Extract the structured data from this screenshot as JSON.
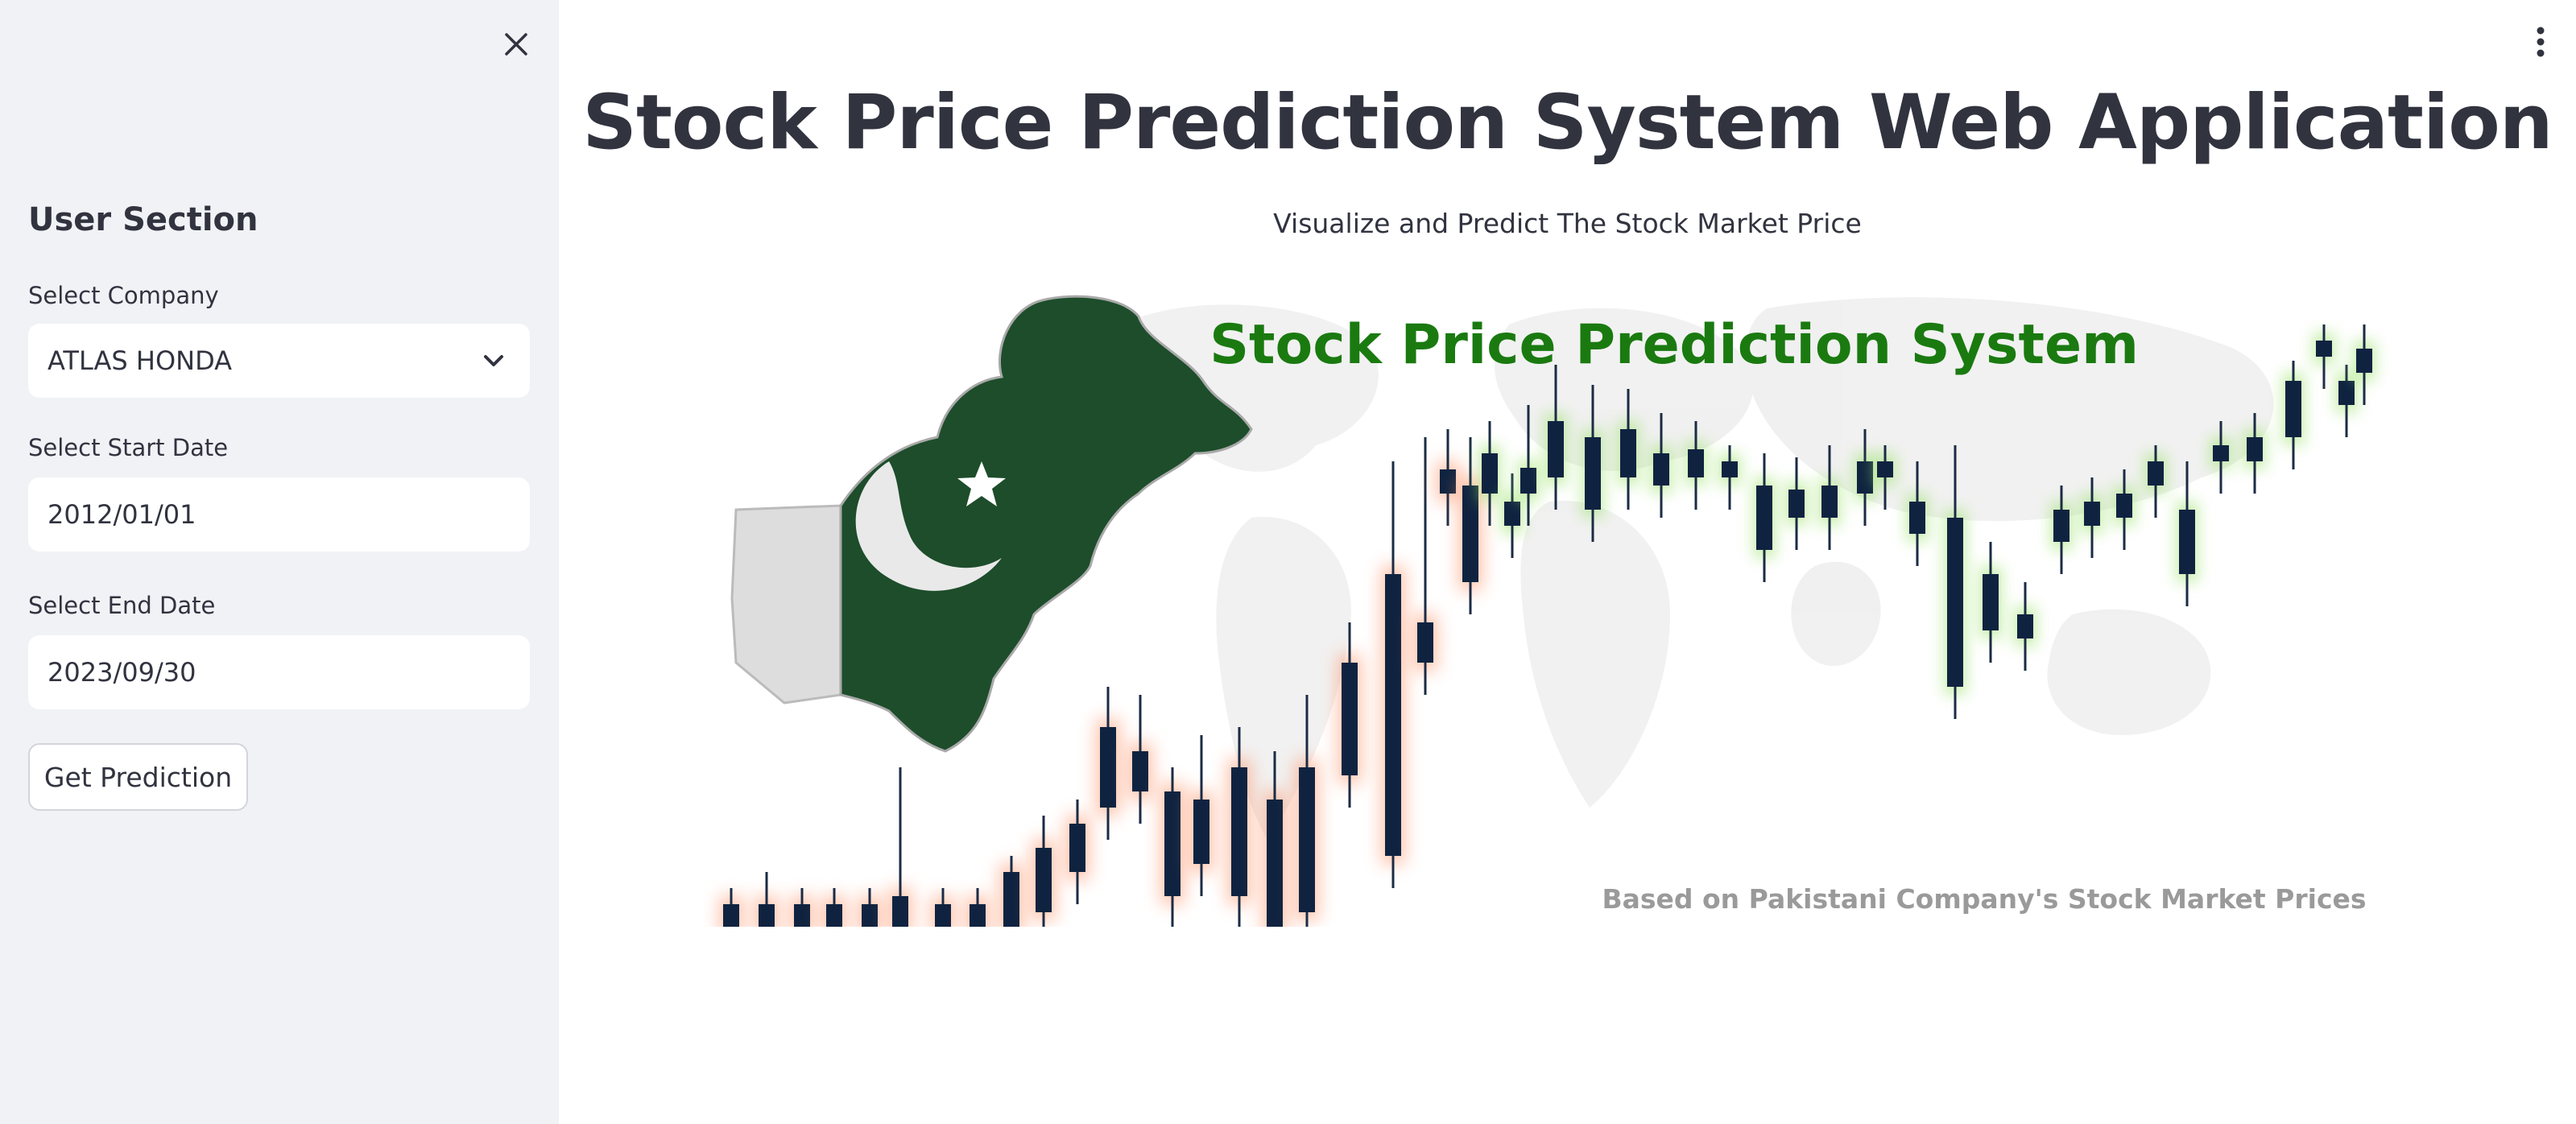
{
  "sidebar": {
    "section_title": "User Section",
    "company_label": "Select Company",
    "company_value": "ATLAS HONDA",
    "start_label": "Select Start Date",
    "start_value": "2012/01/01",
    "end_label": "Select End Date",
    "end_value": "2023/09/30",
    "button_label": "Get Prediction",
    "close_icon": "close-icon"
  },
  "main": {
    "title": "Stock Price Prediction System Web Application",
    "subtitle": "Visualize and Predict The Stock Market Price",
    "menu_icon": "kebab-menu-icon"
  },
  "banner": {
    "title": "Stock Price Prediction System",
    "caption": "Based on Pakistani Company's Stock Market Prices",
    "title_color": "#1a7a10",
    "caption_color": "#9a9a9a",
    "flag_green": "#1d4d2b",
    "candle_color": "#0f2340"
  }
}
